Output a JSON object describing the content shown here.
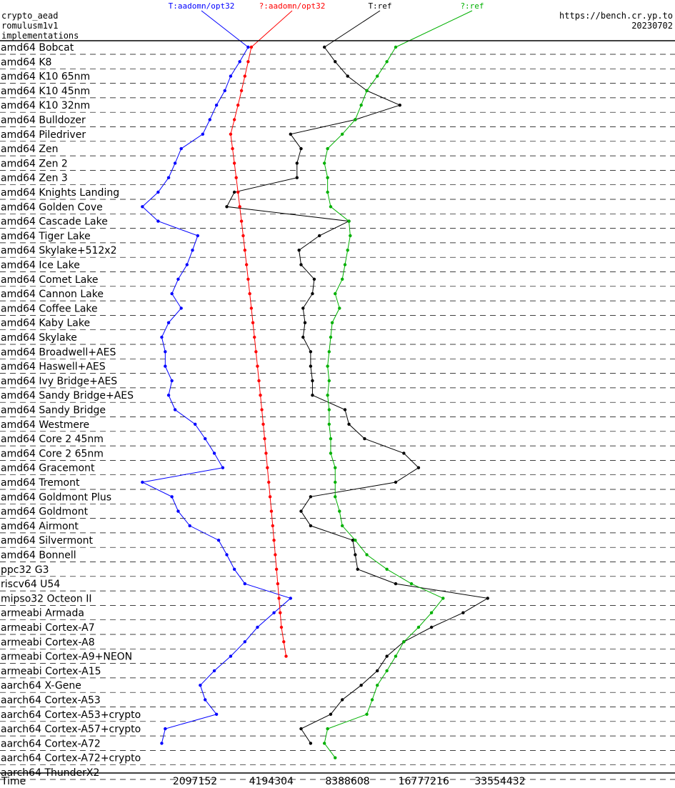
{
  "header": {
    "left_lines": [
      "crypto_aead",
      "romulusm1v1",
      "implementations"
    ],
    "right_lines": [
      "https://bench.cr.yp.to",
      "20230702"
    ]
  },
  "chart_data": {
    "type": "line",
    "x_axis_label": "Time",
    "x_scale": "log2",
    "x_ticks": [
      2097152,
      4194304,
      8388608,
      16777216,
      33554432
    ],
    "xlim": [
      262144,
      67108864
    ],
    "series": [
      {
        "name": "T:aadomn/opt32",
        "color": "#0000ff",
        "values": [
          3400000,
          3150000,
          2900000,
          2750000,
          2550000,
          2400000,
          2250000,
          1850000,
          1750000,
          1650000,
          1500000,
          1300000,
          1500000,
          2150000,
          2050000,
          1950000,
          1800000,
          1700000,
          1850000,
          1650000,
          1550000,
          1600000,
          1600000,
          1700000,
          1650000,
          1750000,
          2100000,
          2300000,
          2500000,
          2700000,
          1300000,
          1700000,
          1800000,
          2000000,
          2600000,
          2800000,
          3000000,
          3300000,
          5000000,
          4300000,
          3700000,
          3300000,
          2900000,
          2500000,
          2200000,
          2300000,
          2550000,
          1600000,
          1550000,
          null,
          null
        ]
      },
      {
        "name": "?:aadomn/opt32",
        "color": "#ff0000",
        "values": [
          3500000,
          3400000,
          3300000,
          3200000,
          3100000,
          3000000,
          2900000,
          2950000,
          3000000,
          3050000,
          3100000,
          3150000,
          3200000,
          3250000,
          3300000,
          3350000,
          3400000,
          3450000,
          3500000,
          3550000,
          3600000,
          3650000,
          3700000,
          3750000,
          3800000,
          3850000,
          3900000,
          3950000,
          4000000,
          4050000,
          4100000,
          4150000,
          4200000,
          4250000,
          4300000,
          4350000,
          4400000,
          4450000,
          4500000,
          4550000,
          4600000,
          4700000,
          4800000,
          null,
          null,
          null,
          null,
          null,
          null,
          null,
          null
        ]
      },
      {
        "name": "T:ref",
        "color": "#000000",
        "values": [
          6800000,
          7500000,
          8400000,
          10000000,
          13500000,
          9000000,
          5000000,
          5500000,
          5300000,
          5300000,
          3000000,
          2800000,
          8500000,
          6500000,
          5400000,
          5500000,
          6200000,
          6100000,
          5600000,
          5700000,
          5600000,
          6000000,
          6000000,
          6100000,
          6100000,
          8200000,
          8500000,
          9800000,
          14000000,
          16000000,
          13000000,
          6000000,
          5500000,
          6000000,
          8800000,
          9000000,
          9200000,
          13000000,
          30000000,
          24000000,
          18000000,
          14000000,
          12000000,
          11000000,
          9500000,
          8000000,
          7200000,
          5500000,
          6000000,
          null,
          null
        ]
      },
      {
        "name": "?:ref",
        "color": "#00b000",
        "values": [
          13000000,
          12000000,
          11000000,
          10000000,
          9500000,
          9000000,
          8000000,
          7000000,
          6800000,
          7000000,
          7000000,
          7200000,
          8500000,
          8600000,
          8400000,
          8200000,
          8000000,
          7500000,
          7800000,
          7300000,
          7200000,
          7100000,
          7000000,
          7100000,
          7000000,
          7100000,
          7100000,
          7200000,
          7200000,
          7500000,
          7500000,
          7500000,
          7800000,
          8000000,
          9000000,
          10000000,
          12000000,
          15000000,
          20000000,
          18000000,
          16000000,
          14000000,
          13000000,
          12000000,
          11000000,
          10500000,
          10000000,
          7000000,
          6800000,
          7500000,
          null
        ]
      }
    ],
    "rows": [
      {
        "label": "amd64 Bobcat"
      },
      {
        "label": "amd64 K8"
      },
      {
        "label": "amd64 K10 65nm"
      },
      {
        "label": "amd64 K10 45nm"
      },
      {
        "label": "amd64 K10 32nm"
      },
      {
        "label": "amd64 Bulldozer"
      },
      {
        "label": "amd64 Piledriver"
      },
      {
        "label": "amd64 Zen"
      },
      {
        "label": "amd64 Zen 2"
      },
      {
        "label": "amd64 Zen 3"
      },
      {
        "label": "amd64 Knights Landing"
      },
      {
        "label": "amd64 Golden Cove"
      },
      {
        "label": "amd64 Cascade Lake"
      },
      {
        "label": "amd64 Tiger Lake"
      },
      {
        "label": "amd64 Skylake+512x2"
      },
      {
        "label": "amd64 Ice Lake"
      },
      {
        "label": "amd64 Comet Lake"
      },
      {
        "label": "amd64 Cannon Lake"
      },
      {
        "label": "amd64 Coffee Lake"
      },
      {
        "label": "amd64 Kaby Lake"
      },
      {
        "label": "amd64 Skylake"
      },
      {
        "label": "amd64 Broadwell+AES"
      },
      {
        "label": "amd64 Haswell+AES"
      },
      {
        "label": "amd64 Ivy Bridge+AES"
      },
      {
        "label": "amd64 Sandy Bridge+AES"
      },
      {
        "label": "amd64 Sandy Bridge"
      },
      {
        "label": "amd64 Westmere"
      },
      {
        "label": "amd64 Core 2 45nm"
      },
      {
        "label": "amd64 Core 2 65nm"
      },
      {
        "label": "amd64 Gracemont"
      },
      {
        "label": "amd64 Tremont"
      },
      {
        "label": "amd64 Goldmont Plus"
      },
      {
        "label": "amd64 Goldmont"
      },
      {
        "label": "amd64 Airmont"
      },
      {
        "label": "amd64 Silvermont"
      },
      {
        "label": "amd64 Bonnell"
      },
      {
        "label": "ppc32 G3"
      },
      {
        "label": "riscv64 U54"
      },
      {
        "label": "mipso32 Octeon II"
      },
      {
        "label": "armeabi Armada"
      },
      {
        "label": "armeabi Cortex-A7"
      },
      {
        "label": "armeabi Cortex-A8"
      },
      {
        "label": "armeabi Cortex-A9+NEON"
      },
      {
        "label": "armeabi Cortex-A15"
      },
      {
        "label": "aarch64 X-Gene"
      },
      {
        "label": "aarch64 Cortex-A53"
      },
      {
        "label": "aarch64 Cortex-A53+crypto"
      },
      {
        "label": "aarch64 Cortex-A57+crypto"
      },
      {
        "label": "aarch64 Cortex-A72"
      },
      {
        "label": "aarch64 Cortex-A72+crypto"
      },
      {
        "label": "aarch64 ThunderX2"
      }
    ]
  }
}
